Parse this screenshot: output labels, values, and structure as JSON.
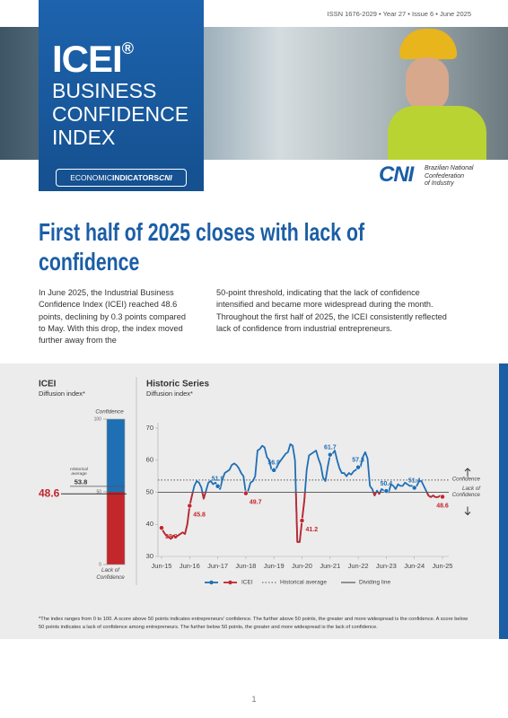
{
  "header": {
    "issn": "ISSN 1676-2029 • Year 27 • Issue 6 • June 2025",
    "brand": "ICEI",
    "brand_mark": "®",
    "title_lines": [
      "BUSINESS",
      "CONFIDENCE",
      "INDEX"
    ],
    "badge": [
      "ECONOMIC",
      "INDICATORS",
      "CNI"
    ],
    "publisher_logo": "CNI",
    "publisher_lines": [
      "Brazilian National",
      "Confederation",
      "of Industry"
    ]
  },
  "headline": "First half of 2025 closes with lack of confidence",
  "body": {
    "columns": [
      "In June 2025, the Industrial Business Confidence Index (ICEI) reached 48.6 points, declining by 0.3 points compared to May. With this drop, the index moved further away from the",
      "50-point threshold, indicating that the lack of confidence intensified and became more widespread during the month. Throughout the first half of 2025, the ICEI consistently reflected lack of confidence from industrial entrepreneurs."
    ]
  },
  "chart_data": [
    {
      "type": "gauge",
      "title": "ICEI",
      "subtitle": "Diffusion index*",
      "value": 48.6,
      "ylim": [
        0,
        100
      ],
      "yticks": [
        0,
        50,
        100
      ],
      "threshold": 50,
      "upper_label": "Confidence",
      "lower_label": "Lack of Confidence",
      "reference_label": "Historical average",
      "reference_value": 53.8,
      "color": "#1f6fb4",
      "below_color": "#c3262b"
    },
    {
      "type": "line",
      "title": "Historic Series",
      "subtitle": "Diffusion index*",
      "categories": [
        "Jun-15",
        null,
        null,
        null,
        null,
        null,
        null,
        null,
        null,
        null,
        null,
        null,
        "Jun-16",
        null,
        null,
        null,
        null,
        null,
        null,
        null,
        null,
        null,
        null,
        null,
        "Jun-17",
        null,
        null,
        null,
        null,
        null,
        null,
        null,
        null,
        null,
        null,
        null,
        "Jun-18",
        null,
        null,
        null,
        null,
        null,
        null,
        null,
        null,
        null,
        null,
        null,
        "Jun-19",
        null,
        null,
        null,
        null,
        null,
        null,
        null,
        null,
        null,
        null,
        null,
        "Jun-20",
        null,
        null,
        null,
        null,
        null,
        null,
        null,
        null,
        null,
        null,
        null,
        "Jun-21",
        null,
        null,
        null,
        null,
        null,
        null,
        null,
        null,
        null,
        null,
        null,
        "Jun-22",
        null,
        null,
        null,
        null,
        null,
        null,
        null,
        null,
        null,
        null,
        null,
        "Jun-23",
        null,
        null,
        null,
        null,
        null,
        null,
        null,
        null,
        null,
        null,
        null,
        "Jun-24",
        null,
        null,
        null,
        null,
        null,
        null,
        null,
        null,
        null,
        null,
        null,
        "Jun-25"
      ],
      "series": [
        {
          "name": "ICEI",
          "color": "#1f6fb4",
          "below_color": "#c3262b",
          "values": [
            38.9,
            37.5,
            36.5,
            36,
            35.5,
            36.5,
            36,
            36.5,
            37,
            37.5,
            37,
            40,
            45.8,
            49,
            52,
            53.5,
            53,
            51.5,
            48,
            50.5,
            53,
            53.5,
            52.5,
            53,
            51.9,
            51,
            54,
            56,
            56.5,
            57,
            58.5,
            59,
            58.5,
            57.5,
            56,
            55,
            49.7,
            50.5,
            53,
            53.5,
            55,
            63,
            63.5,
            64.5,
            64,
            61,
            60,
            57,
            56.9,
            57.5,
            59,
            60,
            61,
            62,
            62.5,
            65,
            64.5,
            60,
            34.5,
            34.5,
            41.2,
            47.5,
            57,
            61.5,
            62,
            62.5,
            63,
            60.5,
            58.5,
            54.5,
            53.5,
            58,
            61.7,
            62,
            63,
            60,
            57.5,
            56,
            56,
            55,
            56,
            55.5,
            56.5,
            57,
            57.8,
            58,
            61,
            62.5,
            60.5,
            52,
            51,
            49,
            50.5,
            49.5,
            51,
            50.5,
            50.4,
            50,
            52.5,
            52,
            51,
            52.5,
            52,
            52,
            53,
            52.5,
            52,
            52,
            51.4,
            52,
            53.5,
            53.5,
            52,
            50.5,
            49,
            48.5,
            49,
            48.5,
            48.5,
            48.9,
            48.6
          ]
        }
      ],
      "ylim": [
        30,
        70
      ],
      "yticks": [
        30,
        40,
        50,
        60,
        70
      ],
      "threshold": 50,
      "reference_lines": [
        {
          "name": "Historical average",
          "value": 53.8,
          "style": "dotted",
          "color": "#555555"
        },
        {
          "name": "Dividing line",
          "value": 50,
          "style": "solid",
          "color": "#333333"
        }
      ],
      "annotations": {
        "above": "Confidence",
        "below": "Lack of Confidence"
      },
      "legend": "bottom"
    }
  ],
  "footnote": "*The index ranges from 0 to 100. A score above 50 points indicates entrepreneurs' confidence. The further above 50 points, the greater and more widespread is the confidence. A score below 50 points indicates a lack of confidence among entrepreneurs. The further below 50 points, the greater and more widespread is the lack of confidence.",
  "page_number": "1"
}
